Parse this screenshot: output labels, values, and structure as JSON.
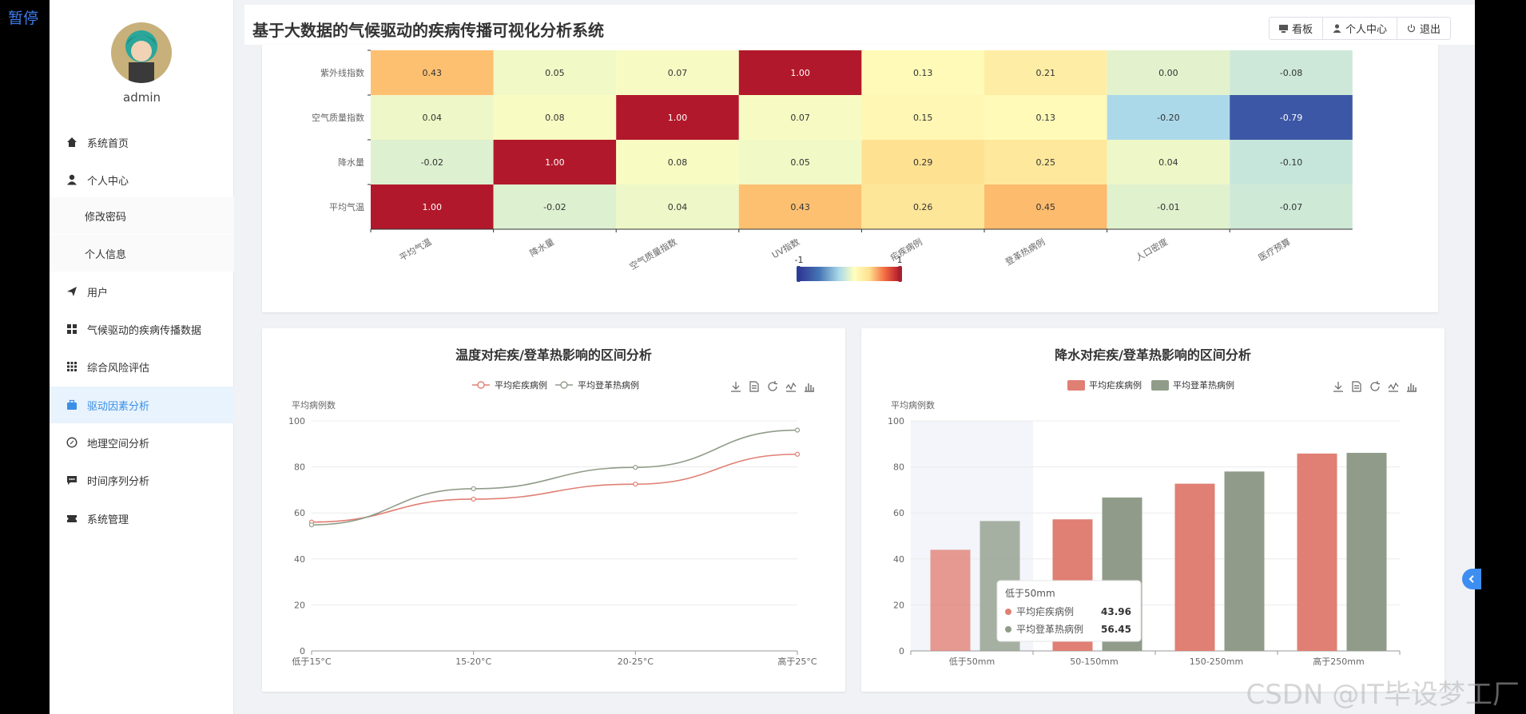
{
  "pause_label": "暂停",
  "user": {
    "name": "admin"
  },
  "menu": [
    {
      "label": "系统首页",
      "icon": "home-icon",
      "active": false,
      "sub": false
    },
    {
      "label": "个人中心",
      "icon": "person-icon",
      "active": false,
      "sub": false
    },
    {
      "label": "修改密码",
      "icon": "",
      "active": false,
      "sub": true
    },
    {
      "label": "个人信息",
      "icon": "",
      "active": false,
      "sub": true
    },
    {
      "label": "用户",
      "icon": "paper-plane-icon",
      "active": false,
      "sub": false
    },
    {
      "label": "气候驱动的疾病传播数据",
      "icon": "grid-icon",
      "active": false,
      "sub": false
    },
    {
      "label": "综合风险评估",
      "icon": "apps-icon",
      "active": false,
      "sub": false
    },
    {
      "label": "驱动因素分析",
      "icon": "briefcase-icon",
      "active": true,
      "sub": false
    },
    {
      "label": "地理空间分析",
      "icon": "compass-icon",
      "active": false,
      "sub": false
    },
    {
      "label": "时间序列分析",
      "icon": "chat-icon",
      "active": false,
      "sub": false
    },
    {
      "label": "系统管理",
      "icon": "ticket-icon",
      "active": false,
      "sub": false
    }
  ],
  "header": {
    "title": "基于大数据的气候驱动的疾病传播可视化分析系统",
    "buttons": [
      "看板",
      "个人中心",
      "退出"
    ]
  },
  "colors": {
    "accent": "#3a8ee6",
    "malaria": "#e07f73",
    "dengue": "#909c89"
  },
  "watermark": "CSDN @IT毕设梦工厂",
  "chart_data": [
    {
      "type": "heatmap",
      "rows": [
        "紫外线指数",
        "空气质量指数",
        "降水量",
        "平均气温"
      ],
      "columns": [
        "平均气温",
        "降水量",
        "空气质量指数",
        "UV指数",
        "疟疾病例",
        "登革热病例",
        "人口密度",
        "医疗预算"
      ],
      "values": [
        [
          0.43,
          0.05,
          0.07,
          1.0,
          0.13,
          0.21,
          0.0,
          -0.08
        ],
        [
          0.04,
          0.08,
          1.0,
          0.07,
          0.15,
          0.13,
          -0.2,
          -0.79
        ],
        [
          -0.02,
          1.0,
          0.08,
          0.05,
          0.29,
          0.25,
          0.04,
          -0.1
        ],
        [
          1.0,
          -0.02,
          0.04,
          0.43,
          0.26,
          0.45,
          -0.01,
          -0.07
        ]
      ],
      "visual_map": {
        "min": "-1",
        "max": "1"
      }
    },
    {
      "type": "line",
      "title": "温度对疟疾/登革热影响的区间分析",
      "ylabel": "平均病例数",
      "ylim": [
        0,
        100
      ],
      "yticks": [
        0,
        20,
        40,
        60,
        80,
        100
      ],
      "categories": [
        "低于15°C",
        "15-20°C",
        "20-25°C",
        "高于25°C"
      ],
      "series": [
        {
          "name": "平均疟疾病例",
          "values": [
            56,
            66,
            72.5,
            85.5
          ]
        },
        {
          "name": "平均登革热病例",
          "values": [
            54.8,
            70.5,
            79.8,
            96
          ]
        }
      ]
    },
    {
      "type": "bar",
      "title": "降水对疟疾/登革热影响的区间分析",
      "ylabel": "平均病例数",
      "ylim": [
        0,
        100
      ],
      "yticks": [
        0,
        20,
        40,
        60,
        80,
        100
      ],
      "categories": [
        "低于50mm",
        "50-150mm",
        "150-250mm",
        "高于250mm"
      ],
      "series": [
        {
          "name": "平均疟疾病例",
          "values": [
            43.96,
            57.2,
            72.7,
            85.8
          ]
        },
        {
          "name": "平均登革热病例",
          "values": [
            56.45,
            66.7,
            78,
            86.1
          ]
        }
      ],
      "tooltip": {
        "title": "低于50mm",
        "rows": [
          {
            "name": "平均疟疾病例",
            "value": "43.96"
          },
          {
            "name": "平均登革热病例",
            "value": "56.45"
          }
        ]
      }
    }
  ]
}
